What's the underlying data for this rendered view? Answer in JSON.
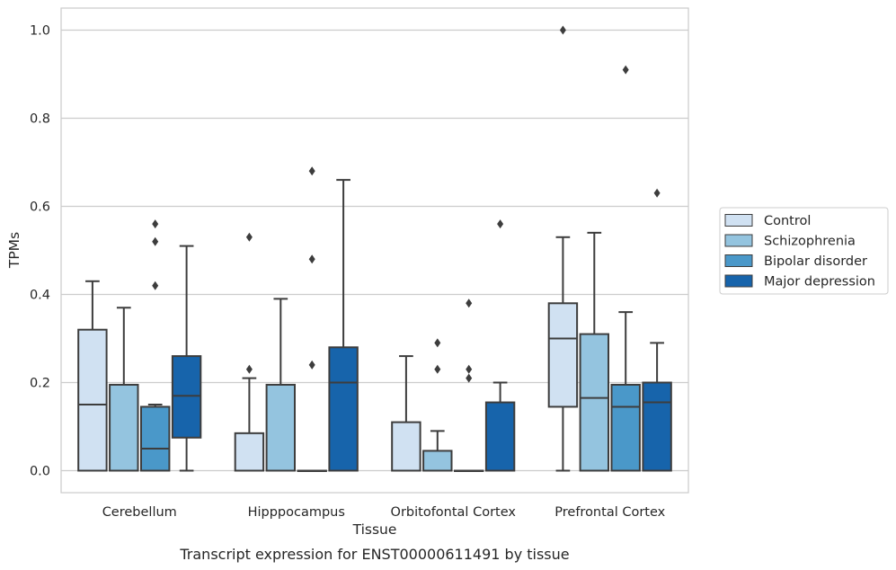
{
  "chart_data": {
    "type": "boxplot",
    "title": "",
    "caption": "Transcript expression for ENST00000611491 by tissue",
    "xlabel": "Tissue",
    "ylabel": "TPMs",
    "ylim": [
      -0.05,
      1.05
    ],
    "yticks": [
      0.0,
      0.2,
      0.4,
      0.6,
      0.8,
      1.0
    ],
    "ytick_labels": [
      "0.0",
      "0.2",
      "0.4",
      "0.6",
      "0.8",
      "1.0"
    ],
    "grid": true,
    "legend_position": "right",
    "categories": [
      "Cerebellum",
      "Hipppocampus",
      "Orbitofontal Cortex",
      "Prefrontal Cortex"
    ],
    "series": [
      {
        "name": "Control",
        "color": "#d0e1f2",
        "boxes": [
          {
            "whislo": 0.0,
            "q1": 0.0,
            "med": 0.15,
            "q3": 0.32,
            "whishi": 0.43,
            "fliers": []
          },
          {
            "whislo": 0.0,
            "q1": 0.0,
            "med": 0.0,
            "q3": 0.085,
            "whishi": 0.21,
            "fliers": [
              0.23,
              0.53
            ]
          },
          {
            "whislo": 0.0,
            "q1": 0.0,
            "med": 0.0,
            "q3": 0.11,
            "whishi": 0.26,
            "fliers": []
          },
          {
            "whislo": 0.0,
            "q1": 0.145,
            "med": 0.3,
            "q3": 0.38,
            "whishi": 0.53,
            "fliers": [
              1.0
            ]
          }
        ]
      },
      {
        "name": "Schizophrenia",
        "color": "#94c4df",
        "boxes": [
          {
            "whislo": 0.0,
            "q1": 0.0,
            "med": 0.0,
            "q3": 0.195,
            "whishi": 0.37,
            "fliers": []
          },
          {
            "whislo": 0.0,
            "q1": 0.0,
            "med": 0.0,
            "q3": 0.195,
            "whishi": 0.39,
            "fliers": []
          },
          {
            "whislo": 0.0,
            "q1": 0.0,
            "med": 0.0,
            "q3": 0.045,
            "whishi": 0.09,
            "fliers": [
              0.23,
              0.29
            ]
          },
          {
            "whislo": 0.0,
            "q1": 0.0,
            "med": 0.165,
            "q3": 0.31,
            "whishi": 0.54,
            "fliers": []
          }
        ]
      },
      {
        "name": "Bipolar disorder",
        "color": "#4a98c9",
        "boxes": [
          {
            "whislo": 0.0,
            "q1": 0.0,
            "med": 0.05,
            "q3": 0.145,
            "whishi": 0.15,
            "fliers": [
              0.42,
              0.52,
              0.56
            ]
          },
          {
            "whislo": 0.0,
            "q1": 0.0,
            "med": 0.0,
            "q3": 0.0,
            "whishi": 0.0,
            "fliers": [
              0.24,
              0.48,
              0.68
            ]
          },
          {
            "whislo": 0.0,
            "q1": 0.0,
            "med": 0.0,
            "q3": 0.0,
            "whishi": 0.0,
            "fliers": [
              0.21,
              0.23,
              0.38
            ]
          },
          {
            "whislo": 0.0,
            "q1": 0.0,
            "med": 0.145,
            "q3": 0.195,
            "whishi": 0.36,
            "fliers": [
              0.91
            ]
          }
        ]
      },
      {
        "name": "Major depression",
        "color": "#1764ab",
        "boxes": [
          {
            "whislo": 0.0,
            "q1": 0.075,
            "med": 0.17,
            "q3": 0.26,
            "whishi": 0.51,
            "fliers": []
          },
          {
            "whislo": 0.0,
            "q1": 0.0,
            "med": 0.2,
            "q3": 0.28,
            "whishi": 0.66,
            "fliers": []
          },
          {
            "whislo": 0.0,
            "q1": 0.0,
            "med": 0.0,
            "q3": 0.155,
            "whishi": 0.2,
            "fliers": [
              0.56
            ]
          },
          {
            "whislo": 0.0,
            "q1": 0.0,
            "med": 0.155,
            "q3": 0.2,
            "whishi": 0.29,
            "fliers": [
              0.63
            ]
          }
        ]
      }
    ]
  }
}
